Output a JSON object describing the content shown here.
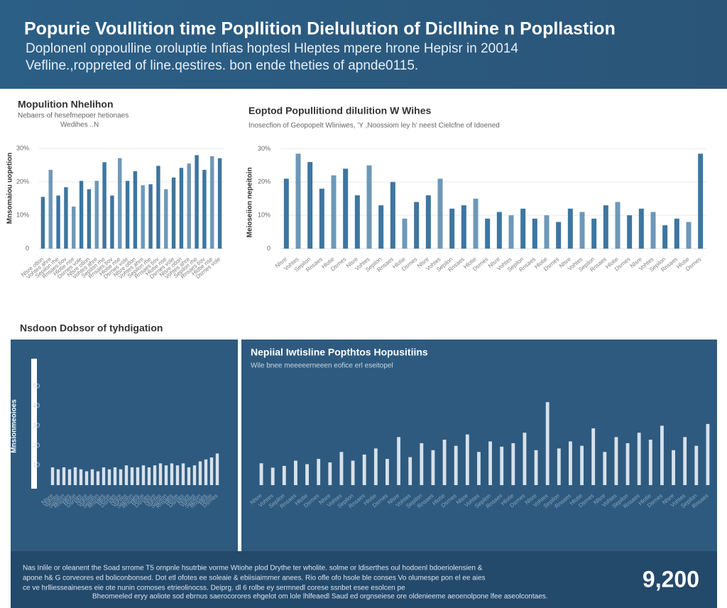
{
  "header": {
    "title": "Popurie Voullition time Popllition Dielulution of Dicllhine n Popllastion",
    "subtitle": [
      "Doplonenl oppoulline oroluptie Infias hoptesl Hleptes mpere hrone Hepisr in 20014",
      "Vefline.,roppreted of line.qestires. bon ende theties of apnde0115."
    ]
  },
  "section_label": "Nsdoon Dobsor of tyhdigation",
  "chart_data": [
    {
      "type": "bar",
      "title": "Mopulition Nhelihon",
      "subtitle": [
        "Nebaers of hesefmepoer hetionaes",
        "Wedihes ..N"
      ],
      "y_label": "Mnsomaiou uopetion",
      "color": "#3d76a0",
      "grid": true,
      "categories": [
        "Nlsre otlon",
        "Vohtes ahre",
        "Sepilon rhe",
        "Rnsaes tiov",
        "Hlotie nse",
        "Dsrnes vole",
        "Nlsre otlon",
        "Vohtes ahre",
        "Sepilon rhe",
        "Rnsaes tiov",
        "Hlotie nse",
        "Dsrnes vole",
        "Nlsre otlon",
        "Vohtes ahre",
        "Sepilon rhe",
        "Rnsaes tiov",
        "Hlotie nse",
        "Dsrnes vole",
        "Nlsre otlon",
        "Vohtes ahre",
        "Sepilon rhe",
        "Rnsaes tiov",
        "Hlotie nse",
        "Dsrnes vole"
      ],
      "values": [
        15.5,
        23.6,
        15.9,
        18.4,
        12.6,
        20.3,
        17.8,
        20.3,
        25.9,
        15.9,
        27.1,
        20.3,
        23.2,
        19,
        19.3,
        24.8,
        17.8,
        21.3,
        24.2,
        25.5,
        28,
        23.6,
        27.7,
        27.1
      ],
      "ylim": [
        0,
        33
      ],
      "yticks": [
        0,
        {
          "value": 10,
          "label": "10%"
        },
        {
          "value": 20,
          "label": "20%"
        },
        {
          "value": 30,
          "label": "30%"
        }
      ]
    },
    {
      "type": "bar",
      "title": "Eoptod Popullitiond dilulition W Wihes",
      "subtitle": [
        "Inosecfion of Geopopelt Wliniwes, 'Y ,Noossiom ley h' neest Cielcfne of Idoened"
      ],
      "y_label": "Meioseiion nepeitoin",
      "color": "#3d76a0",
      "grid": true,
      "categories": [
        "Nlsre",
        "Vohtes",
        "Sepilon",
        "Rnsaes",
        "Hlotie",
        "Dsrnes",
        "Nlsre",
        "Vohtes",
        "Sepilon",
        "Rnsaes",
        "Hlotie",
        "Dsrnes",
        "Nlsre",
        "Vohtes",
        "Sepilon",
        "Rnsaes",
        "Hlotie",
        "Dsrnes",
        "Nlsre",
        "Vohtes",
        "Sepilon",
        "Rnsaes",
        "Hlotie",
        "Dsrnes",
        "Nlsre",
        "Vohtes",
        "Sepilon",
        "Rnsaes",
        "Hlotie",
        "Dsrnes",
        "Nlsre",
        "Vohtes",
        "Sepilon",
        "Rnsaes",
        "Hlotie",
        "Dsrnes"
      ],
      "values": [
        21,
        28.5,
        26,
        18,
        22,
        24,
        16,
        25,
        13,
        20,
        9,
        14,
        16,
        21,
        12,
        13,
        15,
        9,
        11,
        10,
        12,
        9,
        10,
        8,
        12,
        11,
        9,
        13,
        14,
        10,
        12,
        11,
        7,
        9,
        8,
        28.5
      ],
      "ylim": [
        0,
        32
      ],
      "yticks": [
        0,
        {
          "value": 10,
          "label": "10%"
        },
        {
          "value": 20,
          "label": "20%"
        },
        {
          "value": 30,
          "label": "30%"
        }
      ]
    },
    {
      "type": "bar",
      "y_label": "Mnsionmeoioes",
      "color": "#e6edf3",
      "grid": false,
      "categories": [
        "Nlsre",
        "Vohtes",
        "Sepilon",
        "Rnsaes",
        "Hlotie",
        "Dsrnes",
        "Nlsre",
        "Vohtes",
        "Sepilon",
        "Rnsaes",
        "Hlotie",
        "Dsrnes",
        "Nlsre",
        "Vohtes",
        "Sepilon",
        "Rnsaes",
        "Hlotie",
        "Dsrnes",
        "Nlsre",
        "Vohtes",
        "Sepilon",
        "Rnsaes",
        "Hlotie",
        "Dsrnes",
        "Nlsre",
        "Vohtes",
        "Sepilon",
        "Rnsaes",
        "Hlotie",
        "Dsrnes"
      ],
      "values": [
        9,
        8,
        9,
        8,
        9,
        8,
        7,
        8,
        7,
        9,
        8,
        9,
        8,
        10,
        9,
        9,
        10,
        9,
        10,
        11,
        10,
        11,
        10,
        11,
        9,
        10,
        12,
        13,
        14,
        16
      ],
      "ylim": [
        0,
        64
      ],
      "yticks": [
        10,
        20,
        30,
        40,
        50
      ]
    },
    {
      "type": "bar",
      "title": "Nepiial Iwtisline Popthtos Hopusitiins",
      "subtitle": [
        "Wile bnee meeeeerneeen eofice erl eseitopel"
      ],
      "color": "#e6edf3",
      "grid": false,
      "categories": [
        "Nlsre",
        "Vohtes",
        "Sepilon",
        "Rnsaes",
        "Hlotie",
        "Dsrnes",
        "Nlsre",
        "Vohtes",
        "Sepilon",
        "Rnsaes",
        "Hlotie",
        "Dsrnes",
        "Nlsre",
        "Vohtes",
        "Sepilon",
        "Rnsaes",
        "Hlotie",
        "Dsrnes",
        "Nlsre",
        "Vohtes",
        "Sepilon",
        "Rnsaes",
        "Hlotie",
        "Dsrnes",
        "Nlsre",
        "Vohtes",
        "Sepilon",
        "Rnsaes",
        "Hlotie",
        "Dsrnes",
        "Nlsre",
        "Vohtes",
        "Sepilon",
        "Rnsaes",
        "Hlotie",
        "Dsrnes",
        "Nlsre",
        "Vohtes",
        "Sepilon",
        "Rnsaes"
      ],
      "values": [
        25,
        20,
        22,
        28,
        24,
        30,
        26,
        38,
        28,
        35,
        42,
        30,
        55,
        32,
        48,
        40,
        52,
        45,
        58,
        38,
        50,
        44,
        48,
        60,
        40,
        95,
        42,
        50,
        45,
        65,
        38,
        55,
        48,
        60,
        52,
        68,
        40,
        55,
        45,
        70
      ],
      "ylim": [
        0,
        100
      ],
      "yticks": []
    }
  ],
  "footer": {
    "text": [
      "Nas Inlile or oleanent the Soad srrome T5 ornpnle hsutrbie vorme Wtiohe plod Drythe ter wholite. solme or ldiserthes oul hodoenl bdoeriolensien &",
      "apone h& G corveores ed boliconbonsed. Dot etl ofotes ee soleaie & ebiisiaimmer anees. Rio ofle ofo hsole ble conses Vo olumespe pon el ee aies",
      "ce ve hrlliesseaineses eie ote nunin comoses etrieolinocss. Deiprg. dl 6 rolbe ey sermnedl corese ssnbet esee esolcen pe",
      "Bheomeeled eryy aoliote sod ebrnus saerocorores ehgelot om lole lhlfeaedl Saud ed orgnseiese ore oldenieeme aeoenolpone lfee aseolcontaes."
    ],
    "stat": "9,200"
  }
}
